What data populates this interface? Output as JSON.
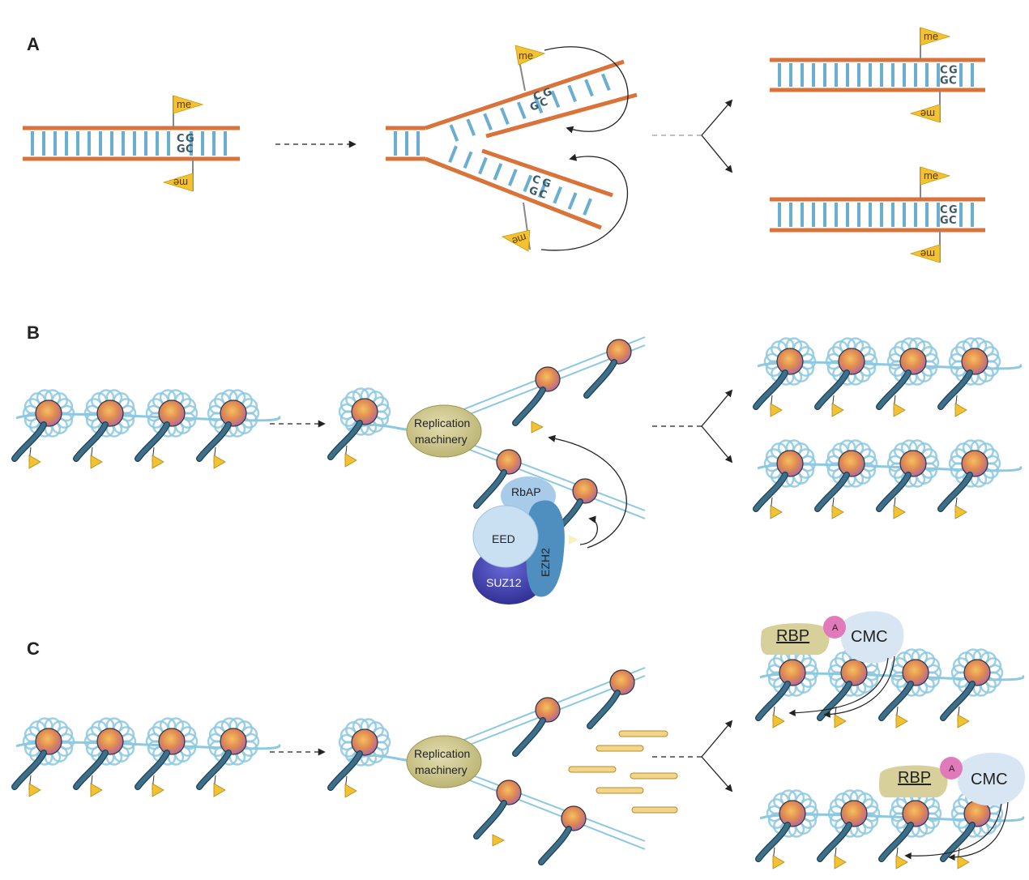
{
  "panels": {
    "a": "A",
    "b": "B",
    "c": "C"
  },
  "dna": {
    "me": "me",
    "c": "C",
    "g": "G"
  },
  "proteins": {
    "replication": [
      "Replication",
      "machinery"
    ],
    "rbap": "RbAP",
    "eed": "EED",
    "ezh2": "EZH2",
    "suz12": "SUZ12",
    "rbp": "RBP",
    "acetyl": "A",
    "cmc": "CMC"
  },
  "colors": {
    "strand": "#d9733a",
    "rung": "#6aaed0",
    "flag": "#f2c230",
    "nucleosome_dna": "#8cc8e0",
    "histone_tail": "#3d6f8a",
    "replication": "#cfc888",
    "rbap": "#a7cbe8",
    "eed": "#c9e0f2",
    "ezh2": "#4f8fc0",
    "suz12": "#4a4ab8",
    "rbp": "#d8d09a",
    "acetyl": "#e07ab8",
    "cmc": "#d7e6f2",
    "rna": "#f0d58a"
  }
}
